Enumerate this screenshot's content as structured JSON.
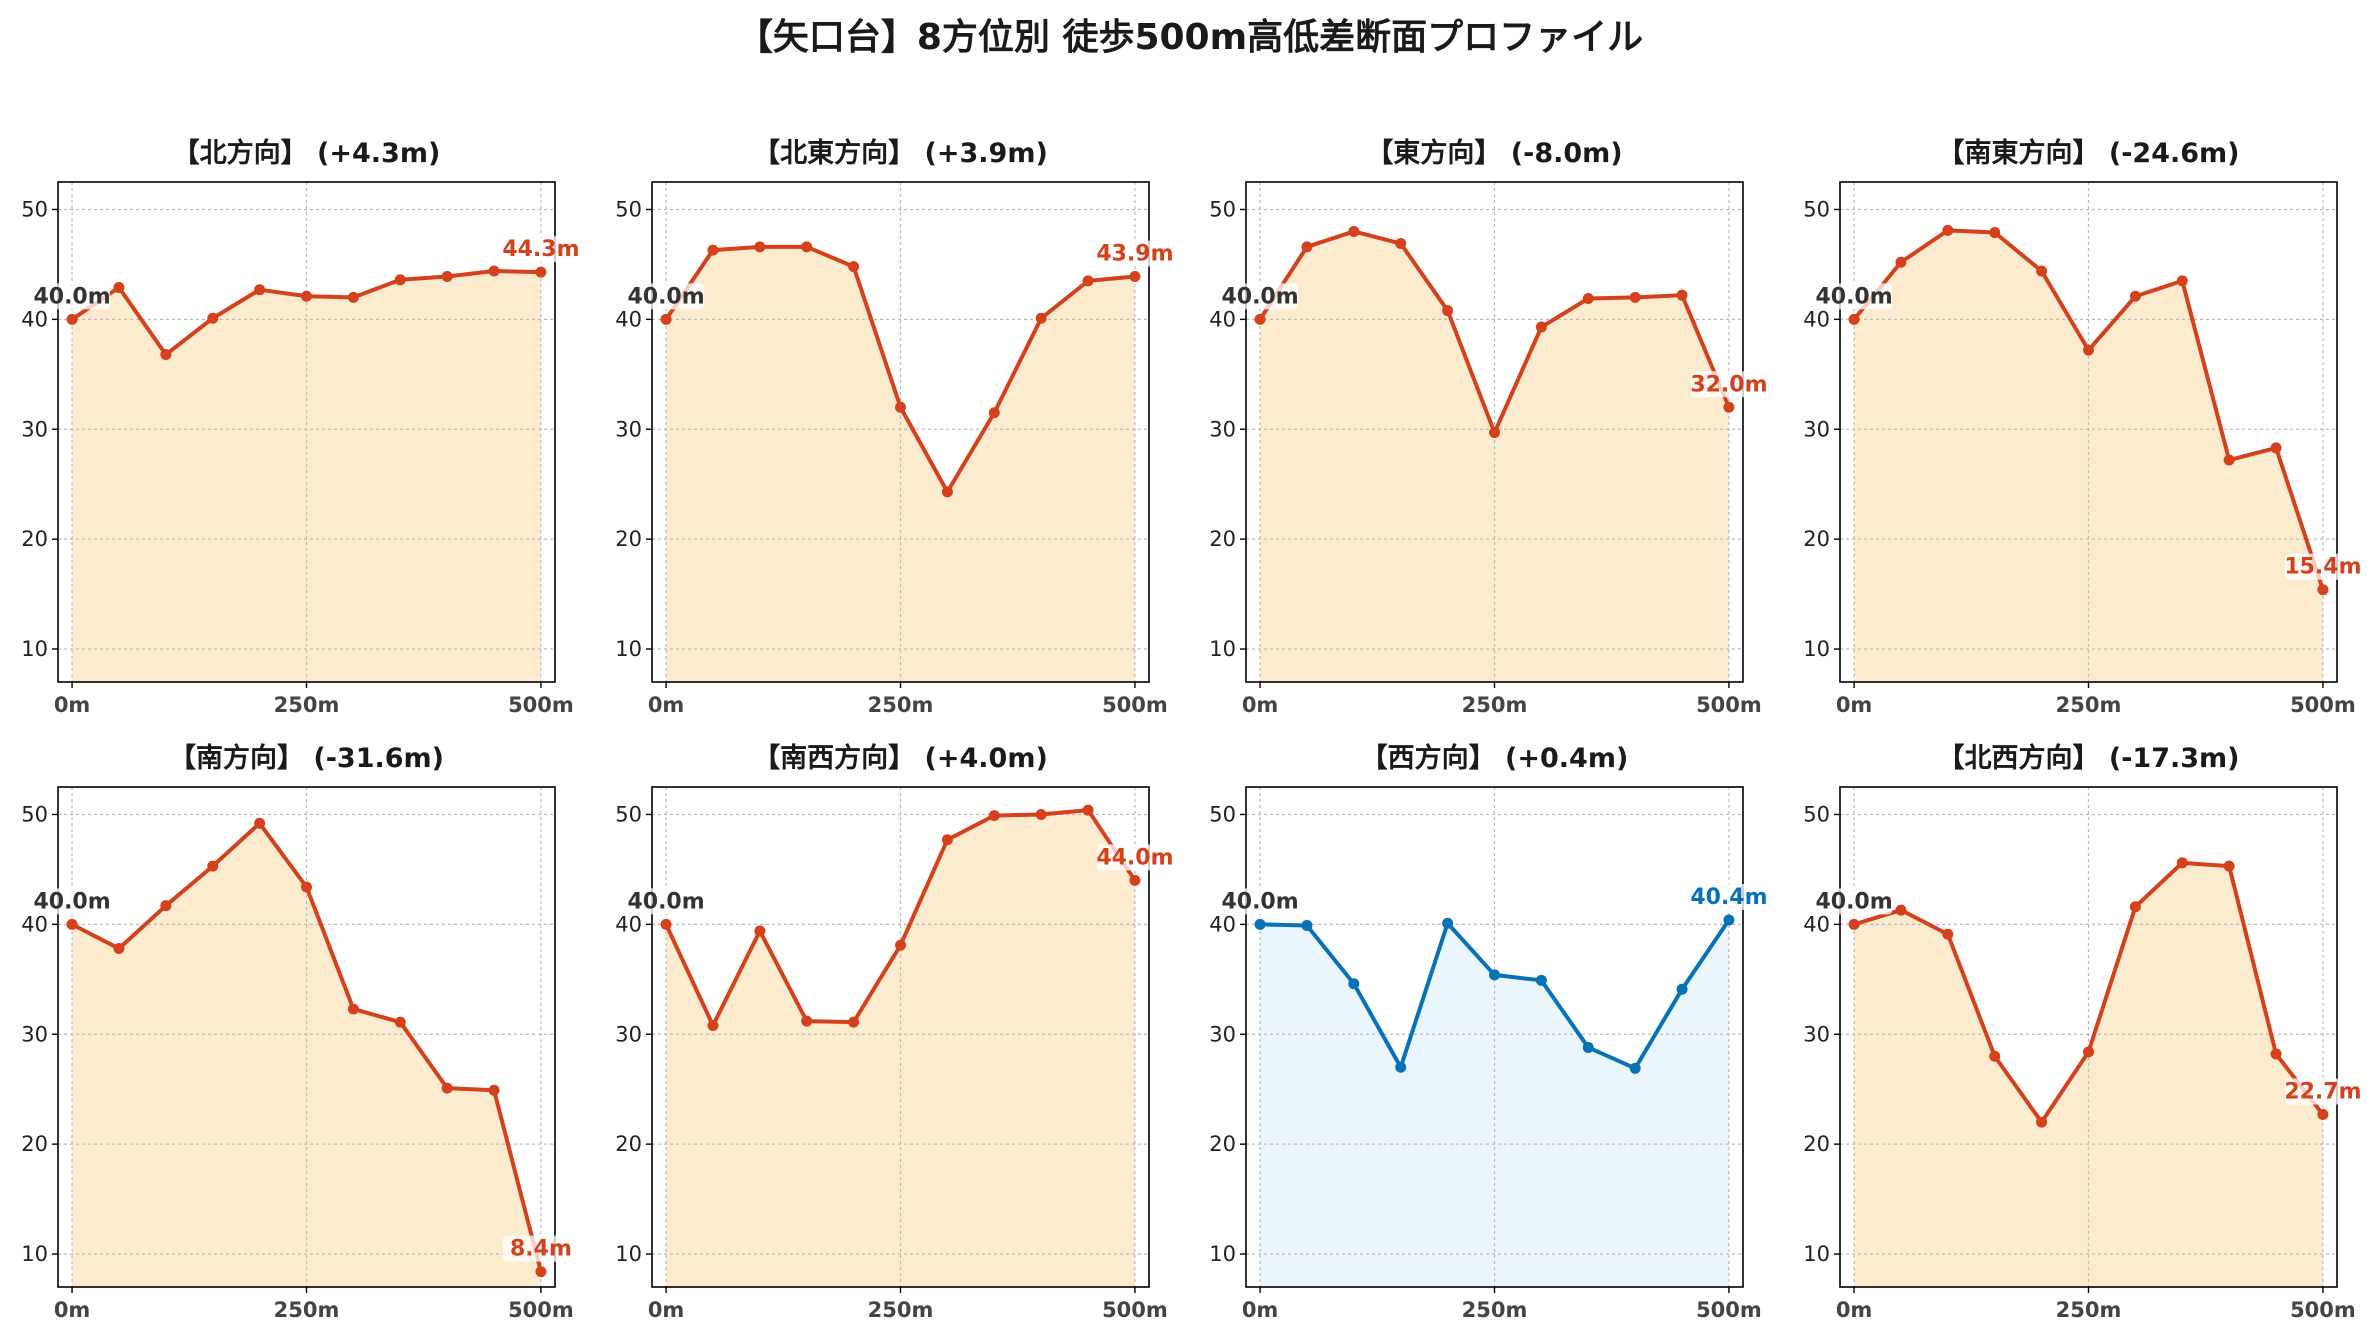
{
  "title": "【矢口台】8方位別 徒歩500m高低差断面プロファイル",
  "colors": {
    "down_line": "#d4411c",
    "down_fill": "#fdebd0",
    "up_line": "#0872b8",
    "up_fill": "#eaf6fc",
    "start_label": "#333333",
    "grid": "#bbbbbb",
    "axis": "#000000"
  },
  "chart_data": [
    {
      "type": "area",
      "title": "【北方向】 (+4.3m)",
      "scheme": "down",
      "x": [
        0,
        50,
        100,
        150,
        200,
        250,
        300,
        350,
        400,
        450,
        500
      ],
      "y": [
        40.0,
        42.9,
        36.8,
        40.1,
        42.7,
        42.1,
        42.0,
        43.6,
        43.9,
        44.4,
        44.3
      ],
      "start_label": "40.0m",
      "end_label": "44.3m",
      "xlim": [
        -15,
        515
      ],
      "ylim": [
        7,
        52.5
      ],
      "xticks": [
        0,
        250,
        500
      ],
      "xtick_labels": [
        "0m",
        "250m",
        "500m"
      ],
      "yticks": [
        10,
        20,
        30,
        40,
        50
      ],
      "ytick_labels": [
        "10",
        "20",
        "30",
        "40",
        "50"
      ],
      "grid": true
    },
    {
      "type": "area",
      "title": "【北東方向】 (+3.9m)",
      "scheme": "down",
      "x": [
        0,
        50,
        100,
        150,
        200,
        250,
        300,
        350,
        400,
        450,
        500
      ],
      "y": [
        40.0,
        46.3,
        46.6,
        46.6,
        44.8,
        32.0,
        24.3,
        31.5,
        40.1,
        43.5,
        43.9
      ],
      "start_label": "40.0m",
      "end_label": "43.9m",
      "xlim": [
        -15,
        515
      ],
      "ylim": [
        7,
        52.5
      ],
      "xticks": [
        0,
        250,
        500
      ],
      "xtick_labels": [
        "0m",
        "250m",
        "500m"
      ],
      "yticks": [
        10,
        20,
        30,
        40,
        50
      ],
      "ytick_labels": [
        "10",
        "20",
        "30",
        "40",
        "50"
      ],
      "grid": true
    },
    {
      "type": "area",
      "title": "【東方向】 (-8.0m)",
      "scheme": "down",
      "x": [
        0,
        50,
        100,
        150,
        200,
        250,
        300,
        350,
        400,
        450,
        500
      ],
      "y": [
        40.0,
        46.6,
        48.0,
        46.9,
        40.8,
        29.7,
        39.3,
        41.9,
        42.0,
        42.2,
        32.0
      ],
      "start_label": "40.0m",
      "end_label": "32.0m",
      "xlim": [
        -15,
        515
      ],
      "ylim": [
        7,
        52.5
      ],
      "xticks": [
        0,
        250,
        500
      ],
      "xtick_labels": [
        "0m",
        "250m",
        "500m"
      ],
      "yticks": [
        10,
        20,
        30,
        40,
        50
      ],
      "ytick_labels": [
        "10",
        "20",
        "30",
        "40",
        "50"
      ],
      "grid": true
    },
    {
      "type": "area",
      "title": "【南東方向】 (-24.6m)",
      "scheme": "down",
      "x": [
        0,
        50,
        100,
        150,
        200,
        250,
        300,
        350,
        400,
        450,
        500
      ],
      "y": [
        40.0,
        45.2,
        48.1,
        47.9,
        44.4,
        37.2,
        42.1,
        43.5,
        27.2,
        28.3,
        15.4
      ],
      "start_label": "40.0m",
      "end_label": "15.4m",
      "xlim": [
        -15,
        515
      ],
      "ylim": [
        7,
        52.5
      ],
      "xticks": [
        0,
        250,
        500
      ],
      "xtick_labels": [
        "0m",
        "250m",
        "500m"
      ],
      "yticks": [
        10,
        20,
        30,
        40,
        50
      ],
      "ytick_labels": [
        "10",
        "20",
        "30",
        "40",
        "50"
      ],
      "grid": true
    },
    {
      "type": "area",
      "title": "【南方向】 (-31.6m)",
      "scheme": "down",
      "x": [
        0,
        50,
        100,
        150,
        200,
        250,
        300,
        350,
        400,
        450,
        500
      ],
      "y": [
        40.0,
        37.8,
        41.7,
        45.3,
        49.2,
        43.4,
        32.3,
        31.1,
        25.1,
        24.9,
        8.4
      ],
      "start_label": "40.0m",
      "end_label": "8.4m",
      "xlim": [
        -15,
        515
      ],
      "ylim": [
        7,
        52.5
      ],
      "xticks": [
        0,
        250,
        500
      ],
      "xtick_labels": [
        "0m",
        "250m",
        "500m"
      ],
      "yticks": [
        10,
        20,
        30,
        40,
        50
      ],
      "ytick_labels": [
        "10",
        "20",
        "30",
        "40",
        "50"
      ],
      "grid": true
    },
    {
      "type": "area",
      "title": "【南西方向】 (+4.0m)",
      "scheme": "down",
      "x": [
        0,
        50,
        100,
        150,
        200,
        250,
        300,
        350,
        400,
        450,
        500
      ],
      "y": [
        40.0,
        30.8,
        39.4,
        31.2,
        31.1,
        38.1,
        47.7,
        49.9,
        50.0,
        50.4,
        44.0
      ],
      "start_label": "40.0m",
      "end_label": "44.0m",
      "xlim": [
        -15,
        515
      ],
      "ylim": [
        7,
        52.5
      ],
      "xticks": [
        0,
        250,
        500
      ],
      "xtick_labels": [
        "0m",
        "250m",
        "500m"
      ],
      "yticks": [
        10,
        20,
        30,
        40,
        50
      ],
      "ytick_labels": [
        "10",
        "20",
        "30",
        "40",
        "50"
      ],
      "grid": true
    },
    {
      "type": "area",
      "title": "【西方向】 (+0.4m)",
      "scheme": "up",
      "x": [
        0,
        50,
        100,
        150,
        200,
        250,
        300,
        350,
        400,
        450,
        500
      ],
      "y": [
        40.0,
        39.9,
        34.6,
        27.0,
        40.1,
        35.4,
        34.9,
        28.8,
        26.9,
        34.1,
        40.4
      ],
      "start_label": "40.0m",
      "end_label": "40.4m",
      "xlim": [
        -15,
        515
      ],
      "ylim": [
        7,
        52.5
      ],
      "xticks": [
        0,
        250,
        500
      ],
      "xtick_labels": [
        "0m",
        "250m",
        "500m"
      ],
      "yticks": [
        10,
        20,
        30,
        40,
        50
      ],
      "ytick_labels": [
        "10",
        "20",
        "30",
        "40",
        "50"
      ],
      "grid": true
    },
    {
      "type": "area",
      "title": "【北西方向】 (-17.3m)",
      "scheme": "down",
      "x": [
        0,
        50,
        100,
        150,
        200,
        250,
        300,
        350,
        400,
        450,
        500
      ],
      "y": [
        40.0,
        41.3,
        39.1,
        28.0,
        22.0,
        28.4,
        41.6,
        45.6,
        45.3,
        28.2,
        22.7
      ],
      "start_label": "40.0m",
      "end_label": "22.7m",
      "xlim": [
        -15,
        515
      ],
      "ylim": [
        7,
        52.5
      ],
      "xticks": [
        0,
        250,
        500
      ],
      "xtick_labels": [
        "0m",
        "250m",
        "500m"
      ],
      "yticks": [
        10,
        20,
        30,
        40,
        50
      ],
      "ytick_labels": [
        "10",
        "20",
        "30",
        "40",
        "50"
      ],
      "grid": true
    }
  ]
}
